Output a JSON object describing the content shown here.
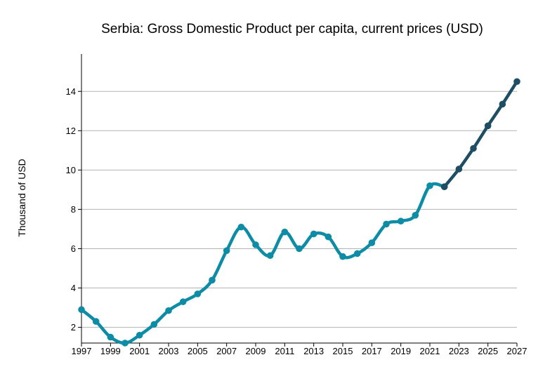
{
  "chart_data": {
    "type": "line",
    "title": "Serbia: Gross Domestic Product per capita, current prices (USD)",
    "xlabel": "",
    "ylabel": "Thousand of USD",
    "xlim": [
      1997,
      2027
    ],
    "ylim": [
      1.2,
      15.9
    ],
    "x_ticks": [
      1997,
      1999,
      2001,
      2003,
      2005,
      2007,
      2009,
      2011,
      2013,
      2015,
      2017,
      2019,
      2021,
      2023,
      2025,
      2027
    ],
    "y_ticks": [
      2,
      4,
      6,
      8,
      10,
      12,
      14
    ],
    "grid": true,
    "series": [
      {
        "color": "#0e8ca6",
        "x": [
          1997,
          1998,
          1999,
          2000,
          2001,
          2002,
          2003,
          2004,
          2005,
          2006,
          2007,
          2008,
          2009,
          2010,
          2011,
          2012,
          2013,
          2014,
          2015,
          2016,
          2017,
          2018,
          2019,
          2020,
          2021,
          2022
        ],
        "y": [
          2.9,
          2.3,
          1.5,
          1.2,
          1.6,
          2.15,
          2.85,
          3.3,
          3.7,
          4.4,
          5.9,
          7.1,
          6.2,
          5.65,
          6.85,
          6.0,
          6.75,
          6.6,
          5.6,
          5.75,
          6.3,
          7.25,
          7.4,
          7.7,
          9.2,
          9.15
        ]
      },
      {
        "color": "#1f4e64",
        "x": [
          2022,
          2023,
          2024,
          2025,
          2026,
          2027
        ],
        "y": [
          9.15,
          10.05,
          11.1,
          12.25,
          13.35,
          14.5
        ]
      }
    ]
  }
}
